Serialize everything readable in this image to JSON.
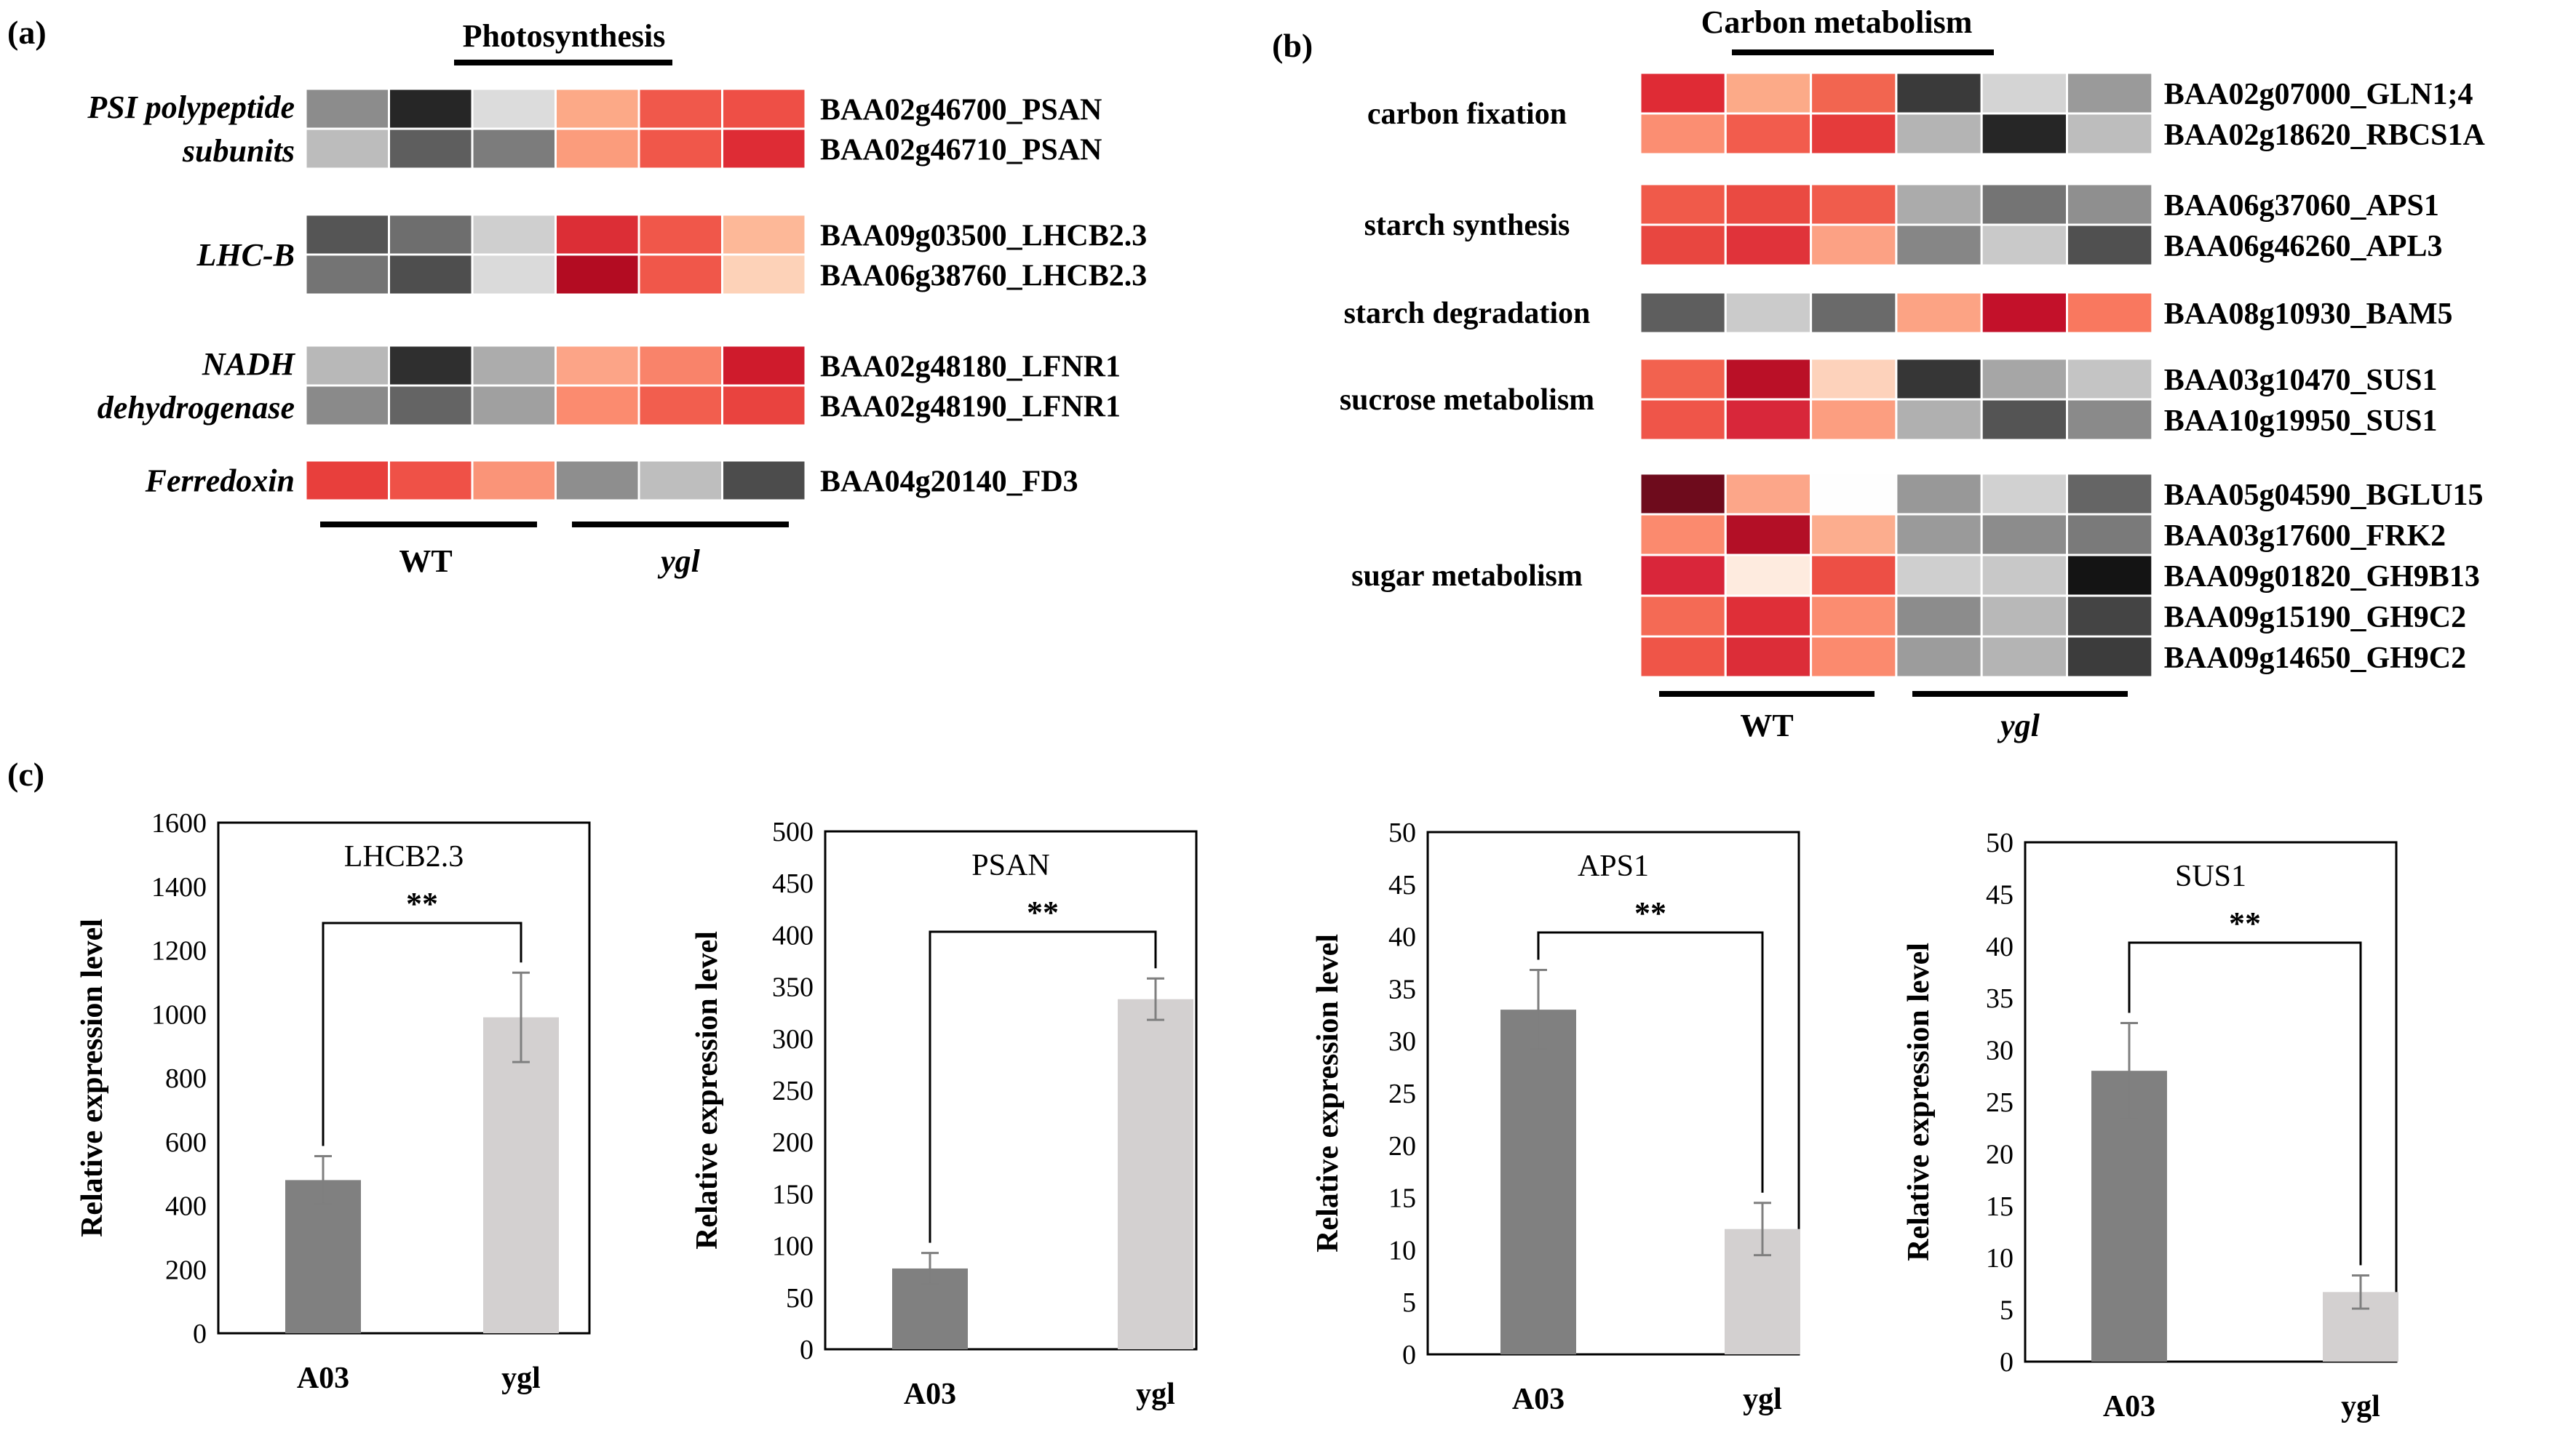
{
  "panels": {
    "a": {
      "letter": "(a)",
      "title": "Photosynthesis",
      "groups": [
        {
          "label": [
            "PSI polypeptide",
            "subunits"
          ],
          "rows": [
            {
              "gene": "BAA02g46700_PSAN",
              "colors": [
                "#8c8c8c",
                "#262626",
                "#dcdcdc",
                "#fca987",
                "#f0584b",
                "#ee4f46"
              ]
            },
            {
              "gene": "BAA02g46710_PSAN",
              "colors": [
                "#bcbcbc",
                "#5e5e5e",
                "#7c7c7c",
                "#fb9c7c",
                "#f0574a",
                "#de2c35"
              ]
            }
          ]
        },
        {
          "label": [
            "LHC-B"
          ],
          "rows": [
            {
              "gene": "BAA09g03500_LHCB2.3",
              "colors": [
                "#555555",
                "#6e6e6e",
                "#cfcfcf",
                "#dc2e36",
                "#f0574a",
                "#fdb898"
              ]
            },
            {
              "gene": "BAA06g38760_LHCB2.3",
              "colors": [
                "#747474",
                "#4e4e4e",
                "#dadada",
                "#b30c22",
                "#f0574a",
                "#fdd2b8"
              ]
            }
          ]
        },
        {
          "label": [
            "NADH",
            "dehydrogenase"
          ],
          "rows": [
            {
              "gene": "BAA02g48180_LFNR1",
              "colors": [
                "#b8b8b8",
                "#2f2f2f",
                "#acacac",
                "#fca487",
                "#f9836a",
                "#cf1b2c"
              ]
            },
            {
              "gene": "BAA02g48190_LFNR1",
              "colors": [
                "#8a8a8a",
                "#646464",
                "#a0a0a0",
                "#fb8b6f",
                "#f25e4e",
                "#e9433f"
              ]
            }
          ]
        },
        {
          "label": [
            "Ferredoxin"
          ],
          "rows": [
            {
              "gene": "BAA04g20140_FD3",
              "colors": [
                "#e83f3c",
                "#ef5147",
                "#fa9478",
                "#8e8e8e",
                "#bebebe",
                "#4c4c4c"
              ]
            }
          ]
        }
      ],
      "groupLabels": [
        "WT",
        "ygl"
      ]
    },
    "b": {
      "letter": "(b)",
      "title": "Carbon metabolism",
      "groups": [
        {
          "label": "carbon fixation",
          "rows": [
            {
              "gene": "BAA02g07000_GLN1;4",
              "colors": [
                "#df2b35",
                "#fcaa88",
                "#f26550",
                "#3a3a3a",
                "#d4d4d4",
                "#9a9a9a"
              ]
            },
            {
              "gene": "BAA02g18620_RBCS1A",
              "colors": [
                "#fb8e72",
                "#f25c4d",
                "#e53b3b",
                "#b4b4b4",
                "#262626",
                "#bdbdbd"
              ]
            }
          ]
        },
        {
          "label": "starch synthesis",
          "rows": [
            {
              "gene": "BAA06g37060_APS1",
              "colors": [
                "#f05a4a",
                "#ea4a42",
                "#f05c4c",
                "#ababab",
                "#747474",
                "#8f8f8f"
              ]
            },
            {
              "gene": "BAA06g46260_APL3",
              "colors": [
                "#e84640",
                "#e0333a",
                "#fca184",
                "#868686",
                "#c9c9c9",
                "#505050"
              ]
            }
          ]
        },
        {
          "label": "starch degradation",
          "rows": [
            {
              "gene": "BAA08g10930_BAM5",
              "colors": [
                "#5e5e5e",
                "#cbcbcb",
                "#6a6a6a",
                "#fca384",
                "#c3112a",
                "#f9785f"
              ]
            }
          ]
        },
        {
          "label": "sucrose metabolism",
          "rows": [
            {
              "gene": "BAA03g10470_SUS1",
              "colors": [
                "#f2624f",
                "#ba1027",
                "#fdd2bb",
                "#363636",
                "#a6a6a6",
                "#c4c4c4"
              ]
            },
            {
              "gene": "BAA10g19950_SUS1",
              "colors": [
                "#ef5549",
                "#d8273a",
                "#fc9e80",
                "#b0b0b0",
                "#545454",
                "#8a8a8a"
              ]
            }
          ]
        },
        {
          "label": "sugar metabolism",
          "rows": [
            {
              "gene": "BAA05g04590_BGLU15",
              "colors": [
                "#6e0b1c",
                "#fca689",
                "#fefefe",
                "#989898",
                "#d1d1d1",
                "#656565"
              ]
            },
            {
              "gene": "BAA03g17600_FRK2",
              "colors": [
                "#fb8a6e",
                "#b30f26",
                "#fcad8e",
                "#9a9a9a",
                "#8c8c8c",
                "#7a7a7a"
              ]
            },
            {
              "gene": "BAA09g01820_GH9B13",
              "colors": [
                "#d9263a",
                "#feebdf",
                "#ed4f45",
                "#cfcfcf",
                "#c8c8c8",
                "#141414"
              ]
            },
            {
              "gene": "BAA09g15190_GH9C2",
              "colors": [
                "#f46a55",
                "#df2f38",
                "#fb8c70",
                "#8c8c8c",
                "#b8b8b8",
                "#444444"
              ]
            },
            {
              "gene": "BAA09g14650_GH9C2",
              "colors": [
                "#ef5548",
                "#dc2d38",
                "#fb8a6e",
                "#9c9c9c",
                "#b4b4b4",
                "#3c3c3c"
              ]
            }
          ]
        }
      ],
      "groupLabels": [
        "WT",
        "ygl"
      ]
    },
    "c": {
      "letter": "(c)"
    }
  },
  "chart_data": [
    {
      "type": "bar",
      "title": "LHCB2.3",
      "categories": [
        "A03",
        "ygl"
      ],
      "values": [
        480,
        990
      ],
      "errors": [
        75,
        140
      ],
      "ylim": [
        0,
        1600
      ],
      "ticks": [
        0,
        200,
        400,
        600,
        800,
        1000,
        1200,
        1400,
        1600
      ],
      "ylabel": "Relative expression level",
      "significance": "**",
      "colors": [
        "#808080",
        "#d3d0d0"
      ]
    },
    {
      "type": "bar",
      "title": "PSAN",
      "categories": [
        "A03",
        "ygl"
      ],
      "values": [
        78,
        338
      ],
      "errors": [
        15,
        20
      ],
      "ylim": [
        0,
        500
      ],
      "ticks": [
        0,
        50,
        100,
        150,
        200,
        250,
        300,
        350,
        400,
        450,
        500
      ],
      "ylabel": "Relative expression level",
      "significance": "**",
      "colors": [
        "#808080",
        "#d3d0d0"
      ]
    },
    {
      "type": "bar",
      "title": "APS1",
      "categories": [
        "A03",
        "ygl"
      ],
      "values": [
        33,
        12
      ],
      "errors": [
        3.8,
        2.5
      ],
      "ylim": [
        0,
        50
      ],
      "ticks": [
        0,
        5,
        10,
        15,
        20,
        25,
        30,
        35,
        40,
        45,
        50
      ],
      "ylabel": "Relative expression level",
      "significance": "**",
      "colors": [
        "#808080",
        "#d3d0d0"
      ]
    },
    {
      "type": "bar",
      "title": "SUS1",
      "categories": [
        "A03",
        "ygl"
      ],
      "values": [
        28,
        6.7
      ],
      "errors": [
        4.6,
        1.6
      ],
      "ylim": [
        0,
        50
      ],
      "ticks": [
        0,
        5,
        10,
        15,
        20,
        25,
        30,
        35,
        40,
        45,
        50
      ],
      "ylabel": "Relative expression level",
      "significance": "**",
      "colors": [
        "#808080",
        "#d3d0d0"
      ]
    }
  ]
}
